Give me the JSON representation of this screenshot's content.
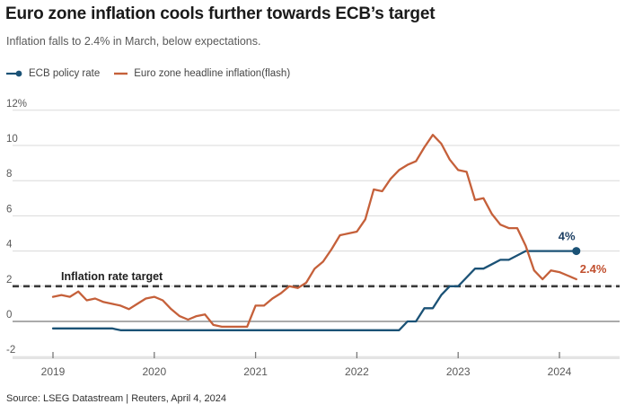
{
  "header": {
    "title": "Euro zone inflation cools further towards ECB’s target",
    "subtitle": "Inflation falls to 2.4% in March, below expectations."
  },
  "source": "Source: LSEG Datastream | Reuters, April 4, 2024",
  "colors": {
    "policy_rate_blue": "#1b5276",
    "inflation_orange": "#c5603a",
    "target_line_dark": "#3a3a3a",
    "gridline_gray": "#dadada",
    "zero_line_gray": "#8f8f8f",
    "axis_text_gray": "#595959"
  },
  "chart_data": {
    "type": "line",
    "x_start": "2019-01",
    "x_end": "2024-03",
    "grid": true,
    "legend_position": "top-left",
    "ylim": [
      -2.8,
      13
    ],
    "x_ticks": [
      {
        "label": "2019",
        "m": 0
      },
      {
        "label": "2020",
        "m": 12
      },
      {
        "label": "2021",
        "m": 24
      },
      {
        "label": "2022",
        "m": 36
      },
      {
        "label": "2023",
        "m": 48
      },
      {
        "label": "2024",
        "m": 60
      }
    ],
    "y_ticks": [
      {
        "label": "12%",
        "v": 12
      },
      {
        "label": "10",
        "v": 10
      },
      {
        "label": "8",
        "v": 8
      },
      {
        "label": "6",
        "v": 6
      },
      {
        "label": "4",
        "v": 4
      },
      {
        "label": "2",
        "v": 2
      },
      {
        "label": "0",
        "v": 0
      },
      {
        "label": "-2",
        "v": -2
      }
    ],
    "target_line": {
      "value": 2,
      "label": "Inflation rate target",
      "style": "dashed"
    },
    "series": [
      {
        "name": "ECB policy rate",
        "color": "#1b5276",
        "end_label": "4%",
        "end_label_color": "#1c3f63",
        "end_marker": true,
        "values": [
          -0.4,
          -0.4,
          -0.4,
          -0.4,
          -0.4,
          -0.4,
          -0.4,
          -0.4,
          -0.5,
          -0.5,
          -0.5,
          -0.5,
          -0.5,
          -0.5,
          -0.5,
          -0.5,
          -0.5,
          -0.5,
          -0.5,
          -0.5,
          -0.5,
          -0.5,
          -0.5,
          -0.5,
          -0.5,
          -0.5,
          -0.5,
          -0.5,
          -0.5,
          -0.5,
          -0.5,
          -0.5,
          -0.5,
          -0.5,
          -0.5,
          -0.5,
          -0.5,
          -0.5,
          -0.5,
          -0.5,
          -0.5,
          -0.5,
          0,
          0,
          0.75,
          0.75,
          1.5,
          2.0,
          2.0,
          2.5,
          3.0,
          3.0,
          3.25,
          3.5,
          3.5,
          3.75,
          4.0,
          4.0,
          4.0,
          4.0,
          4.0,
          4.0,
          4.0
        ]
      },
      {
        "name": "Euro zone headline inflation(flash)",
        "color": "#c5603a",
        "end_label": "2.4%",
        "end_label_color": "#c14f2e",
        "end_marker": false,
        "values": [
          1.4,
          1.5,
          1.4,
          1.7,
          1.2,
          1.3,
          1.1,
          1.0,
          0.9,
          0.7,
          1.0,
          1.3,
          1.4,
          1.2,
          0.7,
          0.3,
          0.1,
          0.3,
          0.4,
          -0.2,
          -0.3,
          -0.3,
          -0.3,
          -0.3,
          0.9,
          0.9,
          1.3,
          1.6,
          2.0,
          1.9,
          2.2,
          3.0,
          3.4,
          4.1,
          4.9,
          5.0,
          5.1,
          5.8,
          7.5,
          7.4,
          8.1,
          8.6,
          8.9,
          9.1,
          9.9,
          10.6,
          10.1,
          9.2,
          8.6,
          8.5,
          6.9,
          7.0,
          6.1,
          5.5,
          5.3,
          5.3,
          4.3,
          2.9,
          2.4,
          2.9,
          2.8,
          2.6,
          2.4
        ]
      }
    ]
  }
}
